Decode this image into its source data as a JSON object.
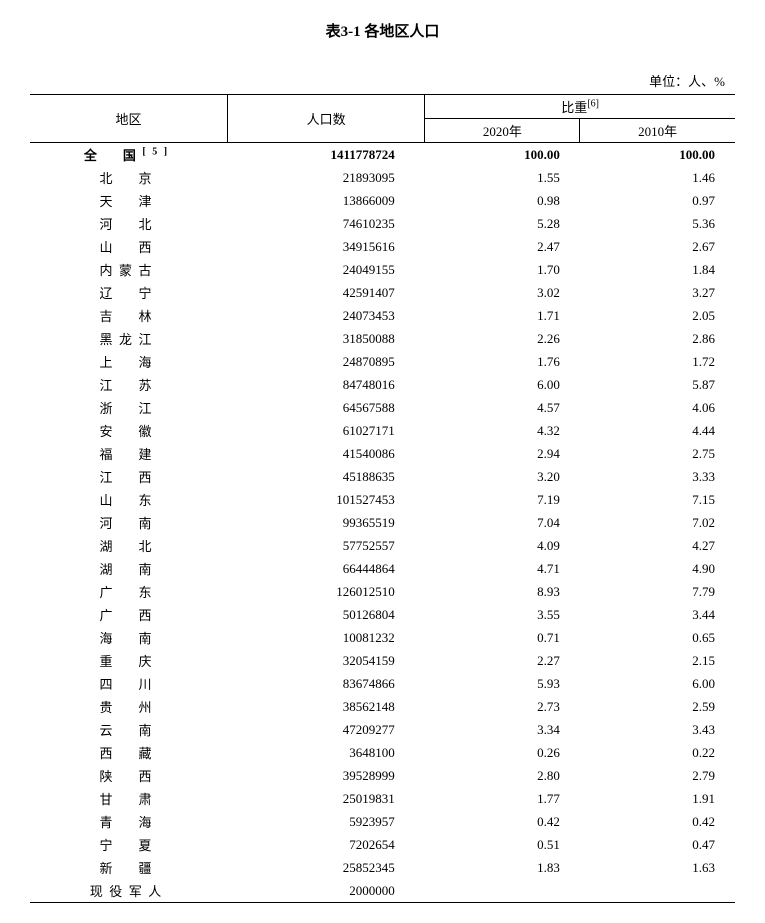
{
  "title": "表3-1 各地区人口",
  "unit": "单位：人、%",
  "headers": {
    "region": "地区",
    "population": "人口数",
    "proportion": "比重",
    "proportion_sup": "[6]",
    "year2020": "2020年",
    "year2010": "2010年"
  },
  "national": {
    "name_a": "全",
    "name_b": "国",
    "sup": "[5]",
    "population": "1411778724",
    "pct2020": "100.00",
    "pct2010": "100.00"
  },
  "rows": [
    {
      "region": "北　京",
      "population": "21893095",
      "pct2020": "1.55",
      "pct2010": "1.46"
    },
    {
      "region": "天　津",
      "population": "13866009",
      "pct2020": "0.98",
      "pct2010": "0.97"
    },
    {
      "region": "河　北",
      "population": "74610235",
      "pct2020": "5.28",
      "pct2010": "5.36"
    },
    {
      "region": "山　西",
      "population": "34915616",
      "pct2020": "2.47",
      "pct2010": "2.67"
    },
    {
      "region": "内蒙古",
      "population": "24049155",
      "pct2020": "1.70",
      "pct2010": "1.84"
    },
    {
      "region": "辽　宁",
      "population": "42591407",
      "pct2020": "3.02",
      "pct2010": "3.27"
    },
    {
      "region": "吉　林",
      "population": "24073453",
      "pct2020": "1.71",
      "pct2010": "2.05"
    },
    {
      "region": "黑龙江",
      "population": "31850088",
      "pct2020": "2.26",
      "pct2010": "2.86"
    },
    {
      "region": "上　海",
      "population": "24870895",
      "pct2020": "1.76",
      "pct2010": "1.72"
    },
    {
      "region": "江　苏",
      "population": "84748016",
      "pct2020": "6.00",
      "pct2010": "5.87"
    },
    {
      "region": "浙　江",
      "population": "64567588",
      "pct2020": "4.57",
      "pct2010": "4.06"
    },
    {
      "region": "安　徽",
      "population": "61027171",
      "pct2020": "4.32",
      "pct2010": "4.44"
    },
    {
      "region": "福　建",
      "population": "41540086",
      "pct2020": "2.94",
      "pct2010": "2.75"
    },
    {
      "region": "江　西",
      "population": "45188635",
      "pct2020": "3.20",
      "pct2010": "3.33"
    },
    {
      "region": "山　东",
      "population": "101527453",
      "pct2020": "7.19",
      "pct2010": "7.15"
    },
    {
      "region": "河　南",
      "population": "99365519",
      "pct2020": "7.04",
      "pct2010": "7.02"
    },
    {
      "region": "湖　北",
      "population": "57752557",
      "pct2020": "4.09",
      "pct2010": "4.27"
    },
    {
      "region": "湖　南",
      "population": "66444864",
      "pct2020": "4.71",
      "pct2010": "4.90"
    },
    {
      "region": "广　东",
      "population": "126012510",
      "pct2020": "8.93",
      "pct2010": "7.79"
    },
    {
      "region": "广　西",
      "population": "50126804",
      "pct2020": "3.55",
      "pct2010": "3.44"
    },
    {
      "region": "海　南",
      "population": "10081232",
      "pct2020": "0.71",
      "pct2010": "0.65"
    },
    {
      "region": "重　庆",
      "population": "32054159",
      "pct2020": "2.27",
      "pct2010": "2.15"
    },
    {
      "region": "四　川",
      "population": "83674866",
      "pct2020": "5.93",
      "pct2010": "6.00"
    },
    {
      "region": "贵　州",
      "population": "38562148",
      "pct2020": "2.73",
      "pct2010": "2.59"
    },
    {
      "region": "云　南",
      "population": "47209277",
      "pct2020": "3.34",
      "pct2010": "3.43"
    },
    {
      "region": "西　藏",
      "population": "3648100",
      "pct2020": "0.26",
      "pct2010": "0.22"
    },
    {
      "region": "陕　西",
      "population": "39528999",
      "pct2020": "2.80",
      "pct2010": "2.79"
    },
    {
      "region": "甘　肃",
      "population": "25019831",
      "pct2020": "1.77",
      "pct2010": "1.91"
    },
    {
      "region": "青　海",
      "population": "5923957",
      "pct2020": "0.42",
      "pct2010": "0.42"
    },
    {
      "region": "宁　夏",
      "population": "7202654",
      "pct2020": "0.51",
      "pct2010": "0.47"
    },
    {
      "region": "新　疆",
      "population": "25852345",
      "pct2020": "1.83",
      "pct2010": "1.63"
    },
    {
      "region": "现役军人",
      "population": "2000000",
      "pct2020": "",
      "pct2010": ""
    }
  ],
  "col_widths": {
    "region": "28%",
    "population": "28%",
    "pct2020": "22%",
    "pct2010": "22%"
  }
}
